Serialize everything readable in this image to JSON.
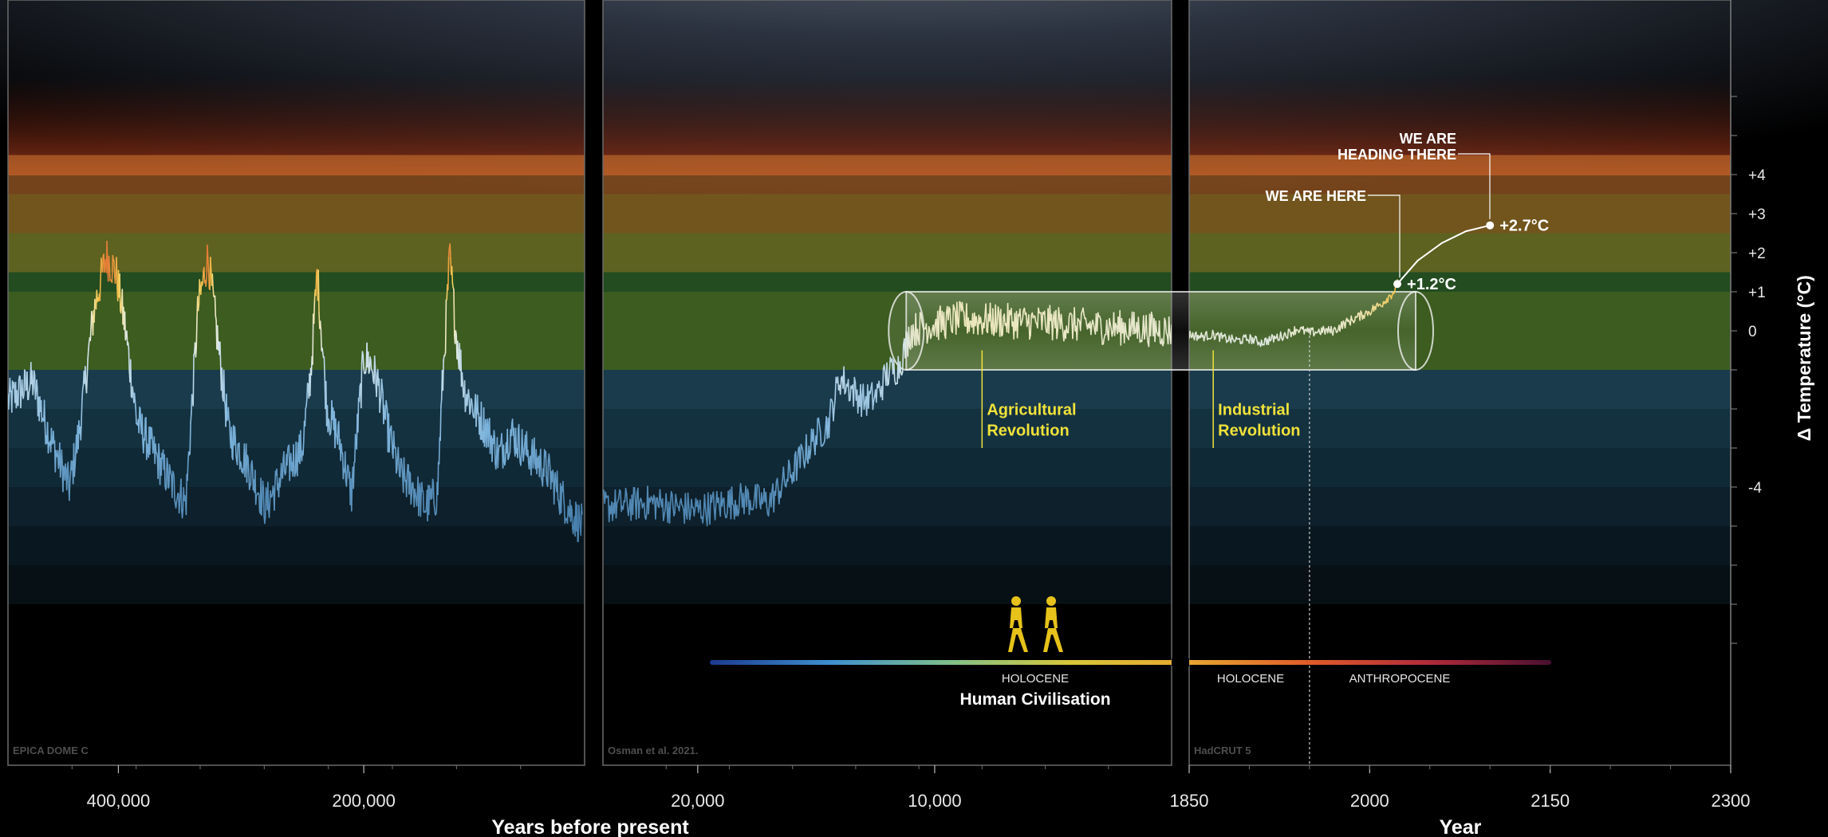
{
  "chart_data": {
    "type": "line",
    "y_axis": {
      "label": "Δ Temperature (°C)",
      "tick_labels": [
        "+4",
        "+3",
        "+2",
        "+1",
        "0",
        "-4"
      ],
      "tick_values": [
        4,
        3,
        2,
        1,
        0,
        -4
      ],
      "ylim": [
        -8,
        6.5
      ]
    },
    "temperature_bands": [
      {
        "lo": 3.5,
        "hi": 4.5,
        "color": "#d47a32"
      },
      {
        "lo": 2.5,
        "hi": 3.5,
        "color": "#cf9a35"
      },
      {
        "lo": 1.5,
        "hi": 2.5,
        "color": "#aab23a"
      },
      {
        "lo": 1.0,
        "hi": 1.5,
        "color": "#3f8a3a"
      },
      {
        "lo": -1.0,
        "hi": 1.0,
        "color": "#6ea83a"
      },
      {
        "lo": -2.0,
        "hi": -1.0,
        "color": "#2e6b8a"
      },
      {
        "lo": -3.0,
        "hi": -2.0,
        "color": "#255a75"
      },
      {
        "lo": -4.0,
        "hi": -3.0,
        "color": "#1d4a62"
      },
      {
        "lo": -5.0,
        "hi": -4.0,
        "color": "#173b4e"
      },
      {
        "lo": -6.0,
        "hi": -5.0,
        "color": "#112c3a"
      },
      {
        "lo": -7.0,
        "hi": -6.0,
        "color": "#0b1d26"
      }
    ],
    "panels": [
      {
        "source": "EPICA DOME C",
        "x_scale": "years before present",
        "xlim": [
          490000,
          20000
        ],
        "tick_labels": [
          "400,000",
          "200,000"
        ],
        "tick_values": [
          400000,
          200000
        ],
        "series": {
          "color_scale": "temperature",
          "x": [
            490000,
            470000,
            455000,
            440000,
            432000,
            420000,
            410000,
            402000,
            395000,
            385000,
            370000,
            355000,
            345000,
            335000,
            327000,
            320000,
            310000,
            295000,
            280000,
            265000,
            250000,
            243000,
            238000,
            230000,
            220000,
            210000,
            200000,
            195000,
            188000,
            180000,
            170000,
            160000,
            150000,
            140000,
            136000,
            130000,
            125000,
            118000,
            110000,
            100000,
            90000,
            80000,
            70000,
            60000,
            50000,
            40000,
            30000,
            22000
          ],
          "y": [
            -1.8,
            -1.3,
            -2.8,
            -4.0,
            -2.6,
            0.5,
            1.9,
            1.5,
            0.2,
            -2.3,
            -3.2,
            -4.0,
            -4.4,
            0.6,
            1.9,
            0.0,
            -2.6,
            -3.4,
            -4.5,
            -3.6,
            -3.0,
            -1.0,
            1.5,
            -2.0,
            -2.8,
            -4.2,
            -0.7,
            -0.8,
            -1.4,
            -2.6,
            -3.7,
            -4.0,
            -4.5,
            -4.2,
            -1.5,
            1.9,
            0.0,
            -1.5,
            -2.0,
            -2.5,
            -3.2,
            -2.6,
            -3.0,
            -3.3,
            -3.6,
            -4.2,
            -4.7,
            -5.0
          ]
        }
      },
      {
        "source": "Osman et al. 2021.",
        "x_scale": "years before present",
        "xlim": [
          24000,
          0
        ],
        "tick_labels": [
          "20,000",
          "10,000"
        ],
        "tick_values": [
          20000,
          10000
        ],
        "series": {
          "color_scale": "temperature",
          "x": [
            24000,
            22000,
            20000,
            18000,
            17000,
            16000,
            15000,
            14500,
            14000,
            13500,
            13000,
            12500,
            12000,
            11500,
            11000,
            10500,
            9000,
            7000,
            5000,
            3000,
            1000,
            0
          ],
          "y": [
            -4.5,
            -4.4,
            -4.6,
            -4.3,
            -4.4,
            -3.6,
            -2.7,
            -2.4,
            -1.2,
            -1.5,
            -1.8,
            -1.7,
            -1.1,
            -0.9,
            0.0,
            0.1,
            0.3,
            0.25,
            0.2,
            0.1,
            0.05,
            0.0
          ]
        },
        "event": {
          "label_line1": "Agricultural",
          "label_line2": "Revolution",
          "x": 8000
        }
      },
      {
        "source": "HadCRUT 5",
        "x_scale": "year",
        "xlim": [
          1850,
          2300
        ],
        "tick_labels": [
          "1850",
          "2000",
          "2150",
          "2300"
        ],
        "tick_values": [
          1850,
          2000,
          2150,
          2300
        ],
        "series": {
          "color_scale": "temperature",
          "x": [
            1850,
            1860,
            1870,
            1880,
            1890,
            1900,
            1910,
            1920,
            1930,
            1940,
            1950,
            1960,
            1970,
            1980,
            1990,
            2000,
            2010,
            2020,
            2023
          ],
          "y": [
            -0.1,
            -0.15,
            -0.1,
            -0.2,
            -0.25,
            -0.2,
            -0.3,
            -0.2,
            -0.1,
            0.05,
            -0.05,
            0.0,
            0.0,
            0.2,
            0.35,
            0.5,
            0.7,
            1.0,
            1.2
          ]
        },
        "projection": {
          "x": [
            2023,
            2040,
            2060,
            2080,
            2100
          ],
          "y": [
            1.2,
            1.8,
            2.25,
            2.55,
            2.7
          ]
        },
        "event": {
          "label_line1": "Industrial",
          "label_line2": "Revolution",
          "x": 1870
        },
        "present_line_x": 1950,
        "markers": [
          {
            "x": 2023,
            "y": 1.2,
            "label": "+1.2°C",
            "callout": [
              "WE ARE HERE"
            ]
          },
          {
            "x": 2100,
            "y": 2.7,
            "label": "+2.7°C",
            "callout": [
              "WE ARE",
              "HEADING THERE"
            ]
          }
        ]
      }
    ],
    "x_axis_labels": {
      "left": "Years before present",
      "right": "Year"
    },
    "timeline": {
      "holocene_label": "HOLOCENE",
      "holocene_label_right": "HOLOCENE",
      "anthropocene_label": "ANTHROPOCENE",
      "civilisation_label": "Human Civilisation",
      "gradient_colors": [
        "#1b3a8f",
        "#3e8fd0",
        "#7fc08a",
        "#d8c83a",
        "#e8a630",
        "#e05a2a",
        "#b02a3a",
        "#4a1030"
      ]
    }
  }
}
